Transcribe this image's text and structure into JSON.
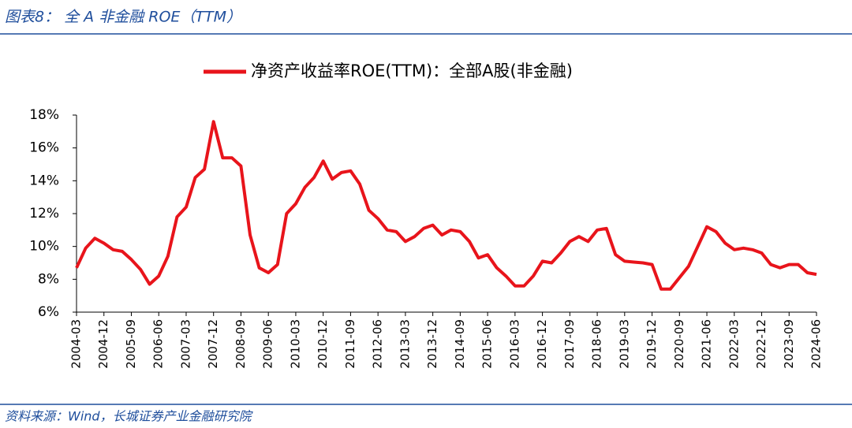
{
  "chart_data": {
    "type": "line",
    "title": "图表8： 全 A 非金融 ROE（TTM）",
    "source": "资料来源：Wind，长城证券产业金融研究院",
    "categories": [
      "2004-03",
      null,
      null,
      "2004-12",
      null,
      null,
      "2005-09",
      null,
      null,
      "2006-06",
      null,
      null,
      "2007-03",
      null,
      null,
      "2007-12",
      null,
      null,
      "2008-09",
      null,
      null,
      "2009-06",
      null,
      null,
      "2010-03",
      null,
      null,
      "2010-12",
      null,
      null,
      "2011-09",
      null,
      null,
      "2012-06",
      null,
      null,
      "2013-03",
      null,
      null,
      "2013-12",
      null,
      null,
      "2014-09",
      null,
      null,
      "2015-06",
      null,
      null,
      "2016-03",
      null,
      null,
      "2016-12",
      null,
      null,
      "2017-09",
      null,
      null,
      "2018-06",
      null,
      null,
      "2019-03",
      null,
      null,
      "2019-12",
      null,
      null,
      "2020-09",
      null,
      null,
      "2021-06",
      null,
      null,
      "2022-03",
      null,
      null,
      "2022-12",
      null,
      null,
      "2023-09",
      null,
      null,
      "2024-06"
    ],
    "series": [
      {
        "name": "净资产收益率ROE(TTM)：全部A股(非金融)",
        "color": "#e8141b",
        "values": [
          8.7,
          9.9,
          10.5,
          10.2,
          9.8,
          9.7,
          9.2,
          8.6,
          7.7,
          8.2,
          9.4,
          11.8,
          12.4,
          14.2,
          14.7,
          17.6,
          15.4,
          15.4,
          14.9,
          10.7,
          8.7,
          8.4,
          8.9,
          12.0,
          12.6,
          13.6,
          14.2,
          15.2,
          14.1,
          14.5,
          14.6,
          13.8,
          12.2,
          11.7,
          11.0,
          10.9,
          10.3,
          10.6,
          11.1,
          11.3,
          10.7,
          11.0,
          10.9,
          10.3,
          9.3,
          9.5,
          8.7,
          8.2,
          7.6,
          7.6,
          8.2,
          9.1,
          9.0,
          9.6,
          10.3,
          10.6,
          10.3,
          11.0,
          11.1,
          9.5,
          9.1,
          9.05,
          9.0,
          8.9,
          7.4,
          7.4,
          8.1,
          8.8,
          10.0,
          11.2,
          10.9,
          10.2,
          9.8,
          9.9,
          9.8,
          9.6,
          8.9,
          8.7,
          8.9,
          8.9,
          8.4,
          8.3
        ]
      }
    ],
    "ylim": [
      6,
      18
    ],
    "yticks": [
      {
        "value": 6,
        "label": "6%"
      },
      {
        "value": 8,
        "label": "8%"
      },
      {
        "value": 10,
        "label": "10%"
      },
      {
        "value": 12,
        "label": "12%"
      },
      {
        "value": 14,
        "label": "14%"
      },
      {
        "value": 16,
        "label": "16%"
      },
      {
        "value": 18,
        "label": "18%"
      }
    ],
    "grid": false,
    "legend": "top"
  }
}
